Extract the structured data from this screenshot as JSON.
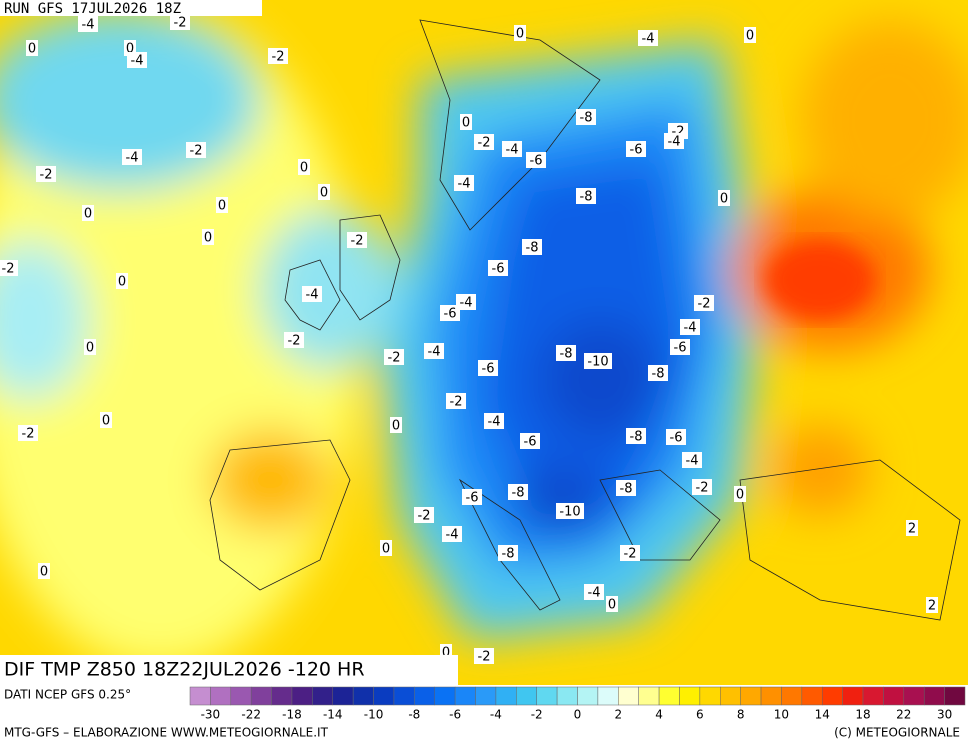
{
  "header": {
    "run": "RUN GFS 17JUL2026 18Z"
  },
  "footer": {
    "title": "DIF TMP Z850 18Z22JUL2026 -120 HR",
    "source": "DATI NCEP GFS 0.25°",
    "credit_left": "MTG-GFS – ELABORAZIONE WWW.METEOGIORNALE.IT",
    "credit_right": "(C) METEOGIORNALE"
  },
  "legend": {
    "ticks": [
      -30,
      -22,
      -18,
      -14,
      -10,
      -8,
      -6,
      -4,
      -2,
      0,
      2,
      4,
      6,
      8,
      10,
      14,
      18,
      22,
      30
    ],
    "colors": [
      "#c58ed0",
      "#b070c0",
      "#9a58b0",
      "#80409c",
      "#652c8c",
      "#4c1f84",
      "#32208a",
      "#1c2396",
      "#1030aa",
      "#0a3cc0",
      "#0a4ed6",
      "#0a60e8",
      "#0a72f4",
      "#1a86f8",
      "#2a9af8",
      "#30b0f4",
      "#40c6f0",
      "#60d8f0",
      "#8ae8f2",
      "#b4f4f4",
      "#dcfcfa",
      "#ffffd0",
      "#ffff90",
      "#ffff30",
      "#fff000",
      "#ffd800",
      "#ffc000",
      "#ffa800",
      "#ff9000",
      "#ff7800",
      "#ff5a00",
      "#ff3c00",
      "#f02010",
      "#d81830",
      "#c01040",
      "#a81050",
      "#900c4c",
      "#700840"
    ]
  },
  "map_labels": [
    -4,
    -2,
    0,
    0,
    -4,
    -2,
    0,
    -4,
    0,
    0,
    -8,
    -2,
    -4,
    -2,
    -4,
    -6,
    -6,
    -4,
    -2,
    -2,
    0,
    0,
    -4,
    -8,
    0,
    0,
    0,
    0,
    -2,
    -8,
    -2,
    0,
    -6,
    -4,
    -4,
    -6,
    -2,
    -4,
    -2,
    0,
    -2,
    -4,
    -8,
    -10,
    -6,
    -6,
    -8,
    -2,
    -4,
    0,
    0,
    -2,
    -6,
    -8,
    -6,
    -4,
    -6,
    -8,
    -8,
    -2,
    0,
    -2,
    -10,
    -4,
    2,
    0,
    -8,
    -2,
    0,
    -4,
    0,
    2,
    0,
    -2
  ]
}
